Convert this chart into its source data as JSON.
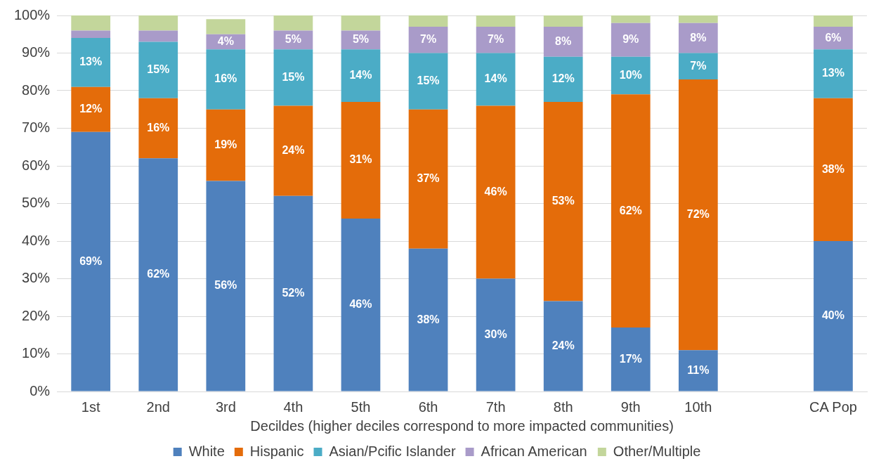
{
  "chart_data": {
    "type": "bar",
    "stacked": true,
    "xlabel": "Decildes (higher deciles correspond to more impacted communities)",
    "categories": [
      "1st",
      "2nd",
      "3rd",
      "4th",
      "5th",
      "6th",
      "7th",
      "8th",
      "9th",
      "10th",
      null,
      "CA Pop"
    ],
    "ylim": [
      0,
      100
    ],
    "yticks": [
      {
        "value": 0,
        "label": "0%"
      },
      {
        "value": 10,
        "label": "10%"
      },
      {
        "value": 20,
        "label": "20%"
      },
      {
        "value": 30,
        "label": "30%"
      },
      {
        "value": 40,
        "label": "40%"
      },
      {
        "value": 50,
        "label": "50%"
      },
      {
        "value": 60,
        "label": "60%"
      },
      {
        "value": 70,
        "label": "70%"
      },
      {
        "value": 80,
        "label": "80%"
      },
      {
        "value": 90,
        "label": "90%"
      },
      {
        "value": 100,
        "label": "100%"
      }
    ],
    "grid": "y",
    "legend": "bottom",
    "series": [
      {
        "name": "White",
        "color": "#4f81bd",
        "values": [
          69,
          62,
          56,
          52,
          46,
          38,
          30,
          24,
          17,
          11,
          null,
          40
        ],
        "value_labels": [
          "69%",
          "62%",
          "56%",
          "52%",
          "46%",
          "38%",
          "30%",
          "24%",
          "17%",
          "11%",
          null,
          "40%"
        ]
      },
      {
        "name": "Hispanic",
        "color": "#e46c0a",
        "values": [
          12,
          16,
          19,
          24,
          31,
          37,
          46,
          53,
          62,
          72,
          null,
          38
        ],
        "value_labels": [
          "12%",
          "16%",
          "19%",
          "24%",
          "31%",
          "37%",
          "46%",
          "53%",
          "62%",
          "72%",
          null,
          "38%"
        ]
      },
      {
        "name": "Asian/Pcific Islander",
        "color": "#4bacc6",
        "values": [
          13,
          15,
          16,
          15,
          14,
          15,
          14,
          12,
          10,
          7,
          null,
          13
        ],
        "value_labels": [
          "13%",
          "15%",
          "16%",
          "15%",
          "14%",
          "15%",
          "14%",
          "12%",
          "10%",
          "7%",
          null,
          "13%"
        ]
      },
      {
        "name": "African American",
        "color": "#a99bc9",
        "values": [
          2,
          3,
          4,
          5,
          5,
          7,
          7,
          8,
          9,
          8,
          null,
          6
        ],
        "value_labels": [
          null,
          null,
          "4%",
          "5%",
          "5%",
          "7%",
          "7%",
          "8%",
          "9%",
          "8%",
          null,
          "6%"
        ]
      },
      {
        "name": "Other/Multiple",
        "color": "#c3d69b",
        "values": [
          4,
          4,
          4,
          4,
          4,
          3,
          3,
          3,
          2,
          2,
          null,
          3
        ]
      }
    ]
  }
}
